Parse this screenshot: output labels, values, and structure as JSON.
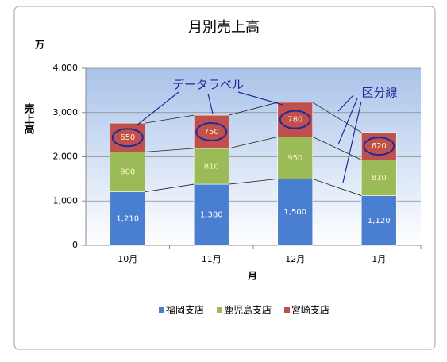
{
  "chart_data": {
    "type": "stacked_bar",
    "title": "月別売上高",
    "y_unit": "万",
    "ylabel": "売上高",
    "xlabel": "月",
    "categories": [
      "10月",
      "11月",
      "12月",
      "1月"
    ],
    "series": [
      {
        "name": "福岡支店",
        "color": "#4a7ed0",
        "values": [
          1210,
          1380,
          1500,
          1120
        ],
        "value_labels": [
          "1,210",
          "1,380",
          "1,500",
          "1,120"
        ]
      },
      {
        "name": "鹿児島支店",
        "color": "#9bbb59",
        "values": [
          900,
          810,
          950,
          810
        ]
      },
      {
        "name": "宮崎支店",
        "color": "#c0504d",
        "values": [
          650,
          750,
          780,
          620
        ]
      }
    ],
    "ylim": [
      0,
      4000
    ],
    "yticks": [
      0,
      {
        "value": 1000,
        "label": "1,000"
      },
      {
        "value": 2000,
        "label": "2,000"
      },
      {
        "value": 3000,
        "label": "3,000"
      },
      {
        "value": 4000,
        "label": "4,000"
      }
    ],
    "grid": true,
    "legend": "bottom",
    "annotations": [
      "データラベル",
      "区分線"
    ]
  }
}
